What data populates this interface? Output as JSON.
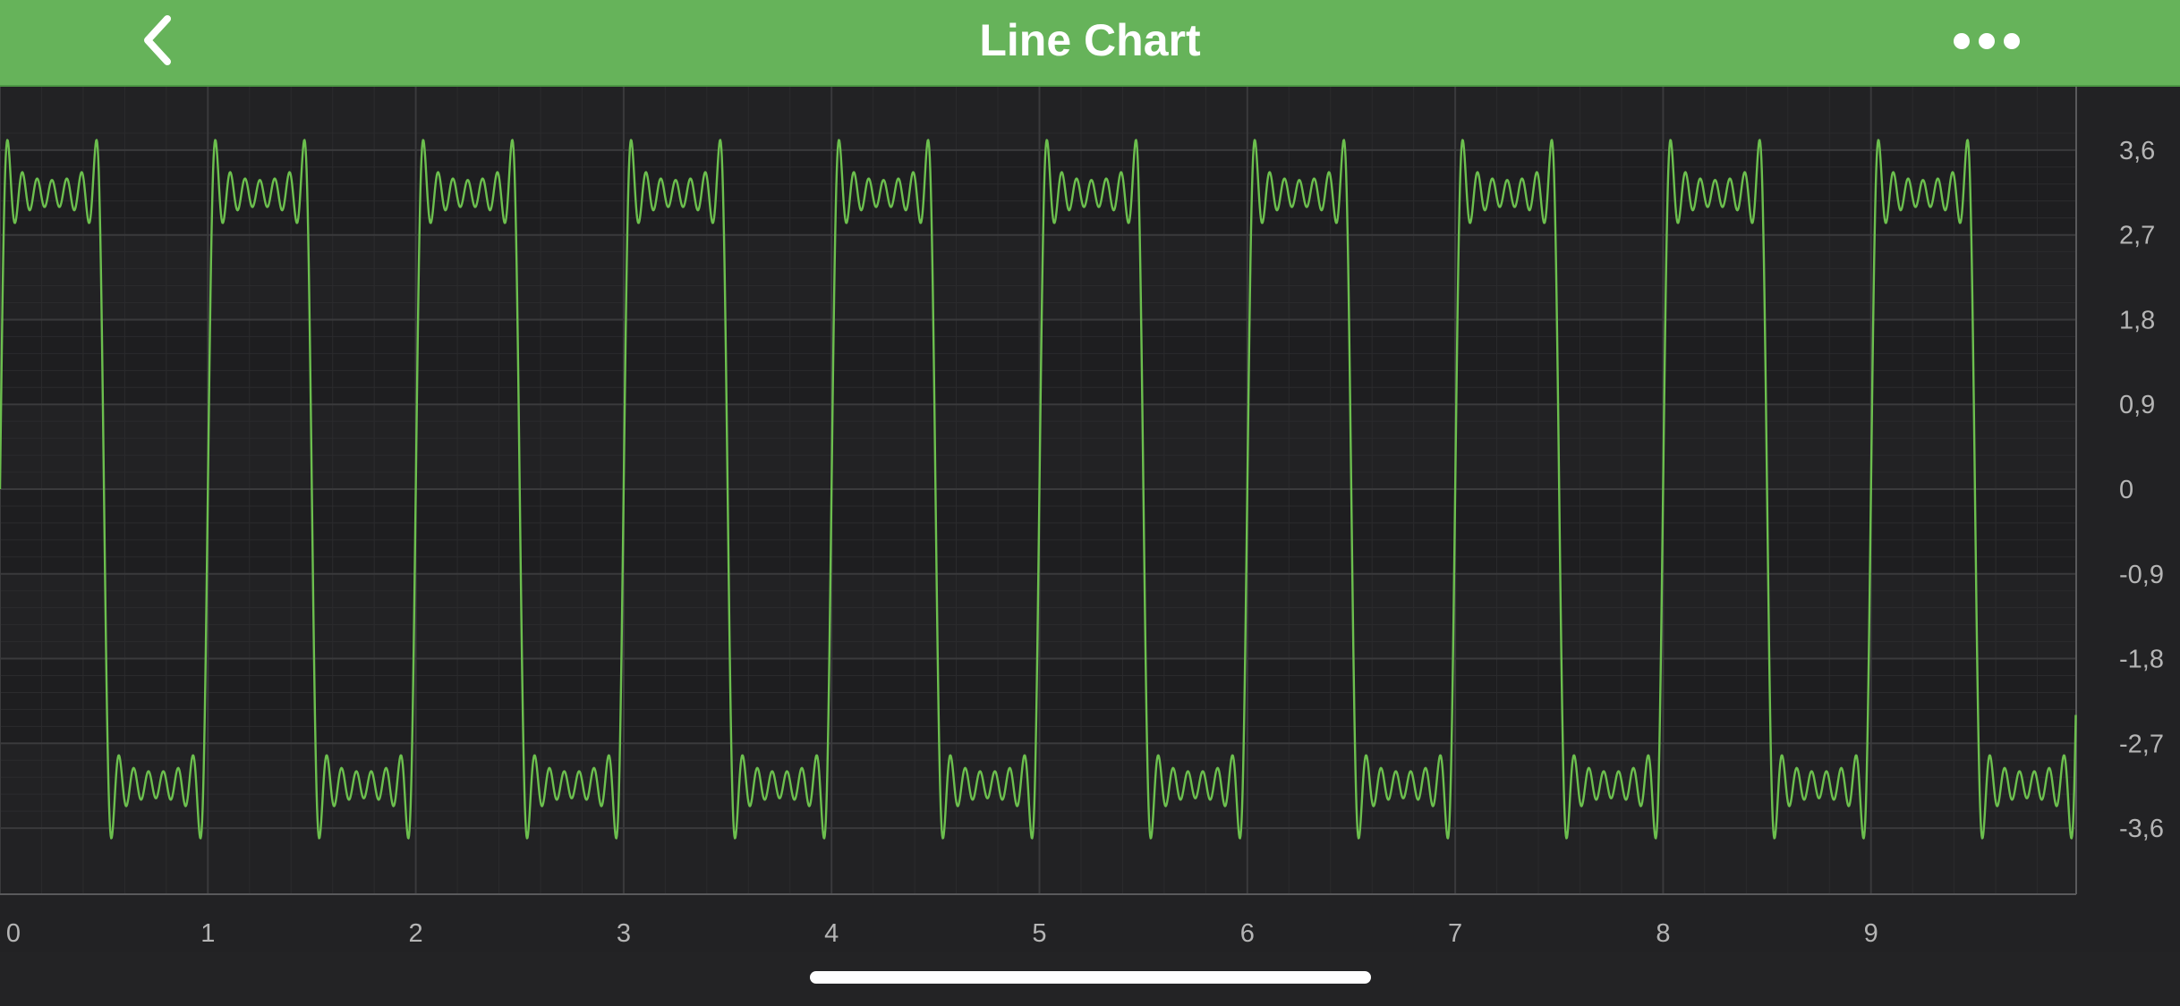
{
  "header": {
    "title": "Line Chart",
    "back_icon": "chevron-left-icon",
    "more_icon": "more-horizontal-icon",
    "background_color": "#66b35a"
  },
  "chart_data": {
    "type": "line",
    "title": "",
    "xlabel": "",
    "ylabel": "",
    "xlim": [
      0,
      10
    ],
    "ylim": [
      -3.9,
      3.9
    ],
    "x_ticks": [
      "0",
      "1",
      "2",
      "3",
      "4",
      "5",
      "6",
      "7",
      "8",
      "9"
    ],
    "y_ticks": [
      "3,6",
      "2,7",
      "1,8",
      "0,9",
      "0",
      "-0,9",
      "-1,8",
      "-2,7",
      "-3,6"
    ],
    "y_axis_position": "right",
    "grid": true,
    "series": [
      {
        "color": "#6cbf4e",
        "waveform": "square wave (Fourier partial sum, odd harmonics 1–13), amplitude π, period 1",
        "period": 1,
        "amplitude": 3.14159,
        "harmonics": [
          1,
          3,
          5,
          7,
          9,
          11,
          13
        ],
        "min": -3.25,
        "max": 3.25
      }
    ]
  },
  "colors": {
    "chart_background": "#222224",
    "grid_major": "#3a3a3c",
    "grid_minor": "#2b2b2d",
    "band": "#1e1e20",
    "axis_label": "#b5b5b5",
    "series": "#6cbf4e"
  }
}
